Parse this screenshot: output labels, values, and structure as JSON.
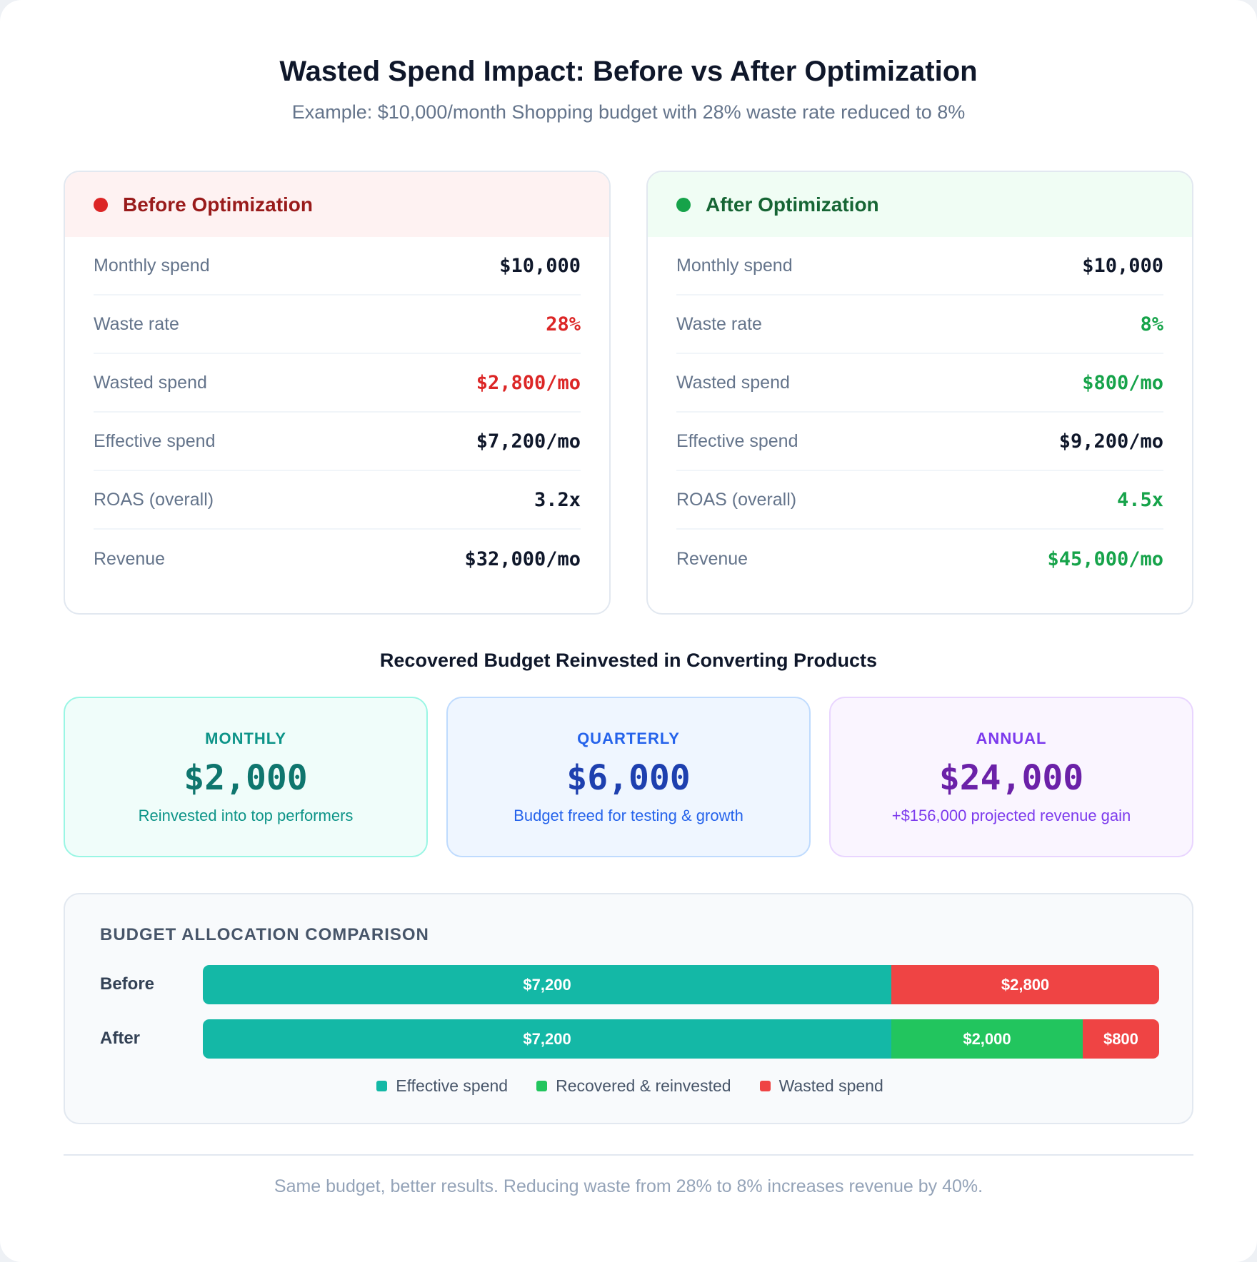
{
  "header": {
    "title": "Wasted Spend Impact: Before vs After Optimization",
    "subtitle": "Example: $10,000/month Shopping budget with 28% waste rate reduced to 8%"
  },
  "before": {
    "title": "Before Optimization",
    "color": "#dc2626",
    "rows": [
      {
        "label": "Monthly spend",
        "value": "$10,000"
      },
      {
        "label": "Waste rate",
        "value": "28%"
      },
      {
        "label": "Wasted spend",
        "value": "$2,800/mo"
      },
      {
        "label": "Effective spend",
        "value": "$7,200/mo"
      },
      {
        "label": "ROAS (overall)",
        "value": "3.2x"
      },
      {
        "label": "Revenue",
        "value": "$32,000/mo"
      }
    ]
  },
  "after": {
    "title": "After Optimization",
    "color": "#16a34a",
    "rows": [
      {
        "label": "Monthly spend",
        "value": "$10,000"
      },
      {
        "label": "Waste rate",
        "value": "8%"
      },
      {
        "label": "Wasted spend",
        "value": "$800/mo"
      },
      {
        "label": "Effective spend",
        "value": "$9,200/mo"
      },
      {
        "label": "ROAS (overall)",
        "value": "4.5x"
      },
      {
        "label": "Revenue",
        "value": "$45,000/mo"
      }
    ]
  },
  "recovered": {
    "title": "Recovered Budget Reinvested in Converting Products",
    "cards": [
      {
        "label": "MONTHLY",
        "value": "$2,000",
        "sub": "Reinvested into top performers"
      },
      {
        "label": "QUARTERLY",
        "value": "$6,000",
        "sub": "Budget freed for testing & growth"
      },
      {
        "label": "ANNUAL",
        "value": "$24,000",
        "sub": "+$156,000 projected revenue gain"
      }
    ]
  },
  "allocation": {
    "title": "BUDGET ALLOCATION COMPARISON",
    "bars": [
      {
        "label": "Before",
        "segments": [
          {
            "value": 7200,
            "text": "$7,200",
            "color": "#14b8a6"
          },
          {
            "value": 2800,
            "text": "$2,800",
            "color": "#ef4444"
          }
        ]
      },
      {
        "label": "After",
        "segments": [
          {
            "value": 7200,
            "text": "$7,200",
            "color": "#14b8a6"
          },
          {
            "value": 2000,
            "text": "$2,000",
            "color": "#22c55e"
          },
          {
            "value": 800,
            "text": "$800",
            "color": "#ef4444"
          }
        ]
      }
    ],
    "legend": [
      {
        "label": "Effective spend",
        "color": "#14b8a6"
      },
      {
        "label": "Recovered & reinvested",
        "color": "#22c55e"
      },
      {
        "label": "Wasted spend",
        "color": "#ef4444"
      }
    ]
  },
  "footer": "Same budget, better results. Reducing waste from 28% to 8% increases revenue by 40%."
}
